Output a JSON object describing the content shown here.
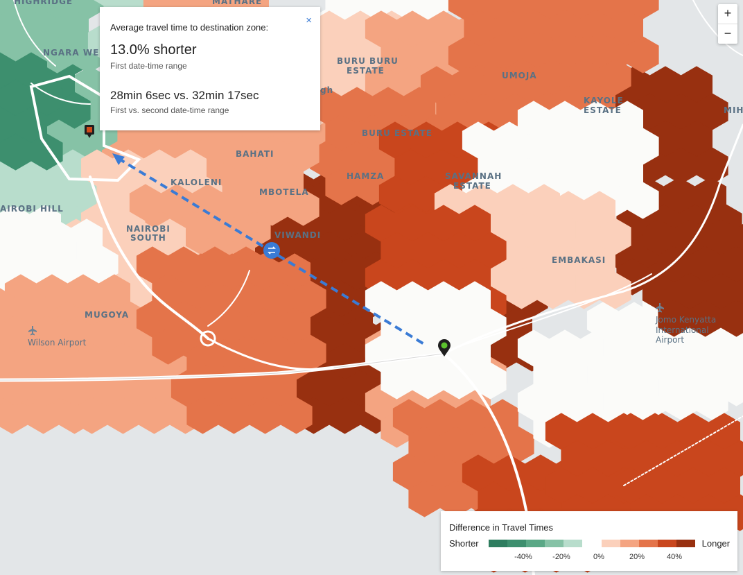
{
  "map": {
    "places": [
      {
        "id": "highridge",
        "label": "HIGHRIDGE"
      },
      {
        "id": "mathare",
        "label": "MATHARE"
      },
      {
        "id": "ngara",
        "label": "NGARA WES"
      },
      {
        "id": "buruburu1",
        "label": "BURU BURU"
      },
      {
        "id": "buruburu2",
        "label": "ESTATE"
      },
      {
        "id": "umoja",
        "label": "UMOJA"
      },
      {
        "id": "kayole1",
        "label": "KAYOLE"
      },
      {
        "id": "kayole2",
        "label": "ESTATE"
      },
      {
        "id": "miha",
        "label": "MIHA"
      },
      {
        "id": "buruestate",
        "label": "BURU ESTATE"
      },
      {
        "id": "bahati",
        "label": "BAHATI"
      },
      {
        "id": "hamza",
        "label": "HAMZA"
      },
      {
        "id": "savannah1",
        "label": "SAVANNAH"
      },
      {
        "id": "savannah2",
        "label": "ESTATE"
      },
      {
        "id": "kaloleni",
        "label": "KALOLENI"
      },
      {
        "id": "mbotela",
        "label": "MBOTELA"
      },
      {
        "id": "nairobihill",
        "label": "AIROBI HILL"
      },
      {
        "id": "nairobisouth1",
        "label": "NAIROBI"
      },
      {
        "id": "nairobisouth2",
        "label": "SOUTH"
      },
      {
        "id": "viwandi",
        "label": "VIWANDI"
      },
      {
        "id": "embakasi",
        "label": "EMBAKASI"
      },
      {
        "id": "mugoya",
        "label": "MUGOYA"
      },
      {
        "id": "wilson",
        "label": "Wilson Airport"
      },
      {
        "id": "jkia1",
        "label": "Jomo Kenyatta"
      },
      {
        "id": "jkia2",
        "label": "International"
      },
      {
        "id": "jkia3",
        "label": "Airport"
      },
      {
        "id": "gh",
        "label": "gh"
      }
    ]
  },
  "tooltip": {
    "heading": "Average travel time to destination zone:",
    "close_glyph": "×",
    "percent": "13.0% shorter",
    "percent_caption": "First date-time range",
    "times": "28min 6sec vs. 32min 17sec",
    "times_caption": "First vs. second date-time range"
  },
  "zoom": {
    "in": "+",
    "out": "−"
  },
  "legend": {
    "title": "Difference in Travel Times",
    "shorter": "Shorter",
    "longer": "Longer",
    "shorter_colors": [
      "#2e7d5f",
      "#3d8f6e",
      "#5aa886",
      "#86c2a6",
      "#b8ddcc"
    ],
    "longer_colors": [
      "#fbd0bb",
      "#f4a481",
      "#e4744a",
      "#c9461d",
      "#983010"
    ],
    "ticks": [
      "-40%",
      "-20%",
      "0%",
      "20%",
      "40%"
    ]
  },
  "colors": {
    "accent_route": "#3a7bd5",
    "origin_marker": "#d04a1a",
    "destination_marker": "#2e9e3a"
  }
}
